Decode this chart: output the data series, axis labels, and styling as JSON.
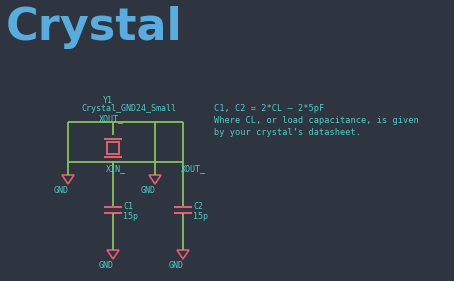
{
  "bg_color": "#2e3440",
  "title": "Crystal",
  "title_color": "#5aacde",
  "title_fontsize": 32,
  "cyan_color": "#4ecdc4",
  "pink_color": "#e06070",
  "wire_color": "#8abf5e",
  "formula_line1": "C1, C2 = 2*CL – 2*5pF",
  "formula_line2": "Where CL, or load capacitance, is given",
  "formula_line3": "by your crystal’s datasheet.",
  "label_y1": "Y1",
  "label_crystal": "Crystal_GND24_Small",
  "label_xout_top": "XOUT_",
  "label_xin": "XIN_",
  "label_xout_bot": "XOUT_",
  "label_c1": "C1",
  "label_c2": "C2",
  "label_15p1": "15p",
  "label_15p2": "15p",
  "label_gnd": "GND"
}
